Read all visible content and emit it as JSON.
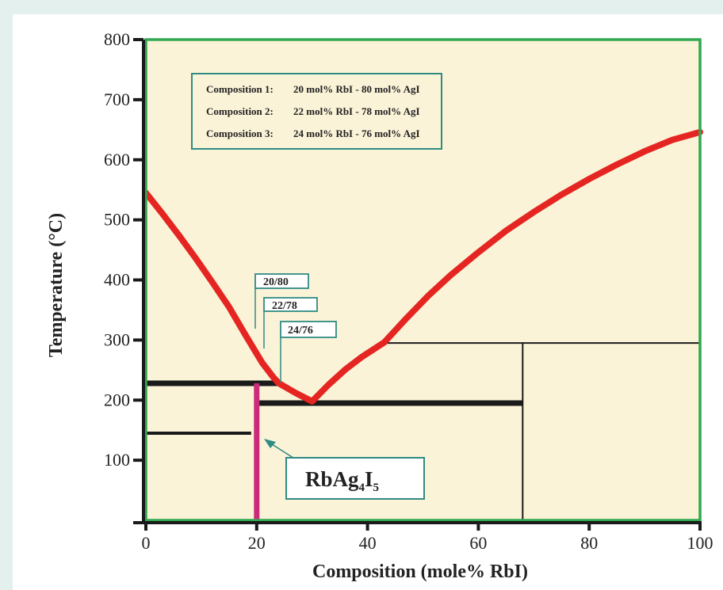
{
  "chart_data": {
    "type": "line",
    "title": "",
    "xlabel": "Composition (mole% RbI)",
    "ylabel": "Temperature (°C)",
    "xlim": [
      0,
      100
    ],
    "ylim": [
      0,
      800
    ],
    "x_ticks": [
      "0",
      "20",
      "40",
      "60",
      "80",
      "100"
    ],
    "y_ticks": [
      "100",
      "200",
      "300",
      "400",
      "500",
      "600",
      "700",
      "800"
    ],
    "grid": false,
    "colors": {
      "plot_background": "#fbf3d8",
      "plot_border": "#2fa84f",
      "liquidus": "#e52521",
      "phase_line": "#1a1a1a",
      "rbag4i5_line": "#cc2a7a",
      "callout_border": "#2e8b83"
    },
    "series": [
      {
        "x": [
          0,
          3,
          6,
          9,
          12,
          15,
          18,
          21,
          23,
          24,
          27,
          30,
          33,
          36,
          39,
          43,
          47,
          51,
          55,
          60,
          65,
          70,
          75,
          80,
          85,
          90,
          95,
          100
        ],
        "y": [
          545,
          510,
          474,
          436,
          396,
          355,
          308,
          262,
          238,
          228,
          212,
          198,
          226,
          251,
          272,
          296,
          336,
          374,
          408,
          446,
          482,
          513,
          542,
          568,
          592,
          614,
          633,
          646
        ]
      }
    ],
    "lines": [
      {
        "kind": "thick",
        "x": [
          0,
          24
        ],
        "y": [
          228,
          228
        ]
      },
      {
        "kind": "thick",
        "x": [
          20,
          68
        ],
        "y": [
          195,
          195
        ]
      },
      {
        "kind": "medium",
        "x": [
          0,
          19
        ],
        "y": [
          145,
          145
        ]
      },
      {
        "kind": "thin",
        "x": [
          43,
          100
        ],
        "y": [
          295,
          295
        ]
      },
      {
        "kind": "thin",
        "x": [
          68,
          68
        ],
        "y": [
          0,
          295
        ]
      },
      {
        "kind": "rbag4i5",
        "x": [
          20,
          20
        ],
        "y": [
          0,
          228
        ]
      }
    ],
    "legend": {
      "placement": "top-left",
      "entries": [
        {
          "label": "Composition 1:",
          "value": "20 mol% RbI - 80 mol% AgI"
        },
        {
          "label": "Composition 2:",
          "value": "22 mol% RbI - 78 mol% AgI"
        },
        {
          "label": "Composition 3:",
          "value": "24 mol% RbI - 76 mol% AgI"
        }
      ]
    },
    "annotations": [
      {
        "text": "20/80",
        "x": 20,
        "y": 300
      },
      {
        "text": "22/78",
        "x": 22,
        "y": 260
      },
      {
        "text": "24/76",
        "x": 24,
        "y": 228
      }
    ],
    "phase_label": {
      "main": "RbAg",
      "sub1": "4",
      "mid": "I",
      "sub2": "5",
      "x": 21,
      "y": 125
    }
  }
}
